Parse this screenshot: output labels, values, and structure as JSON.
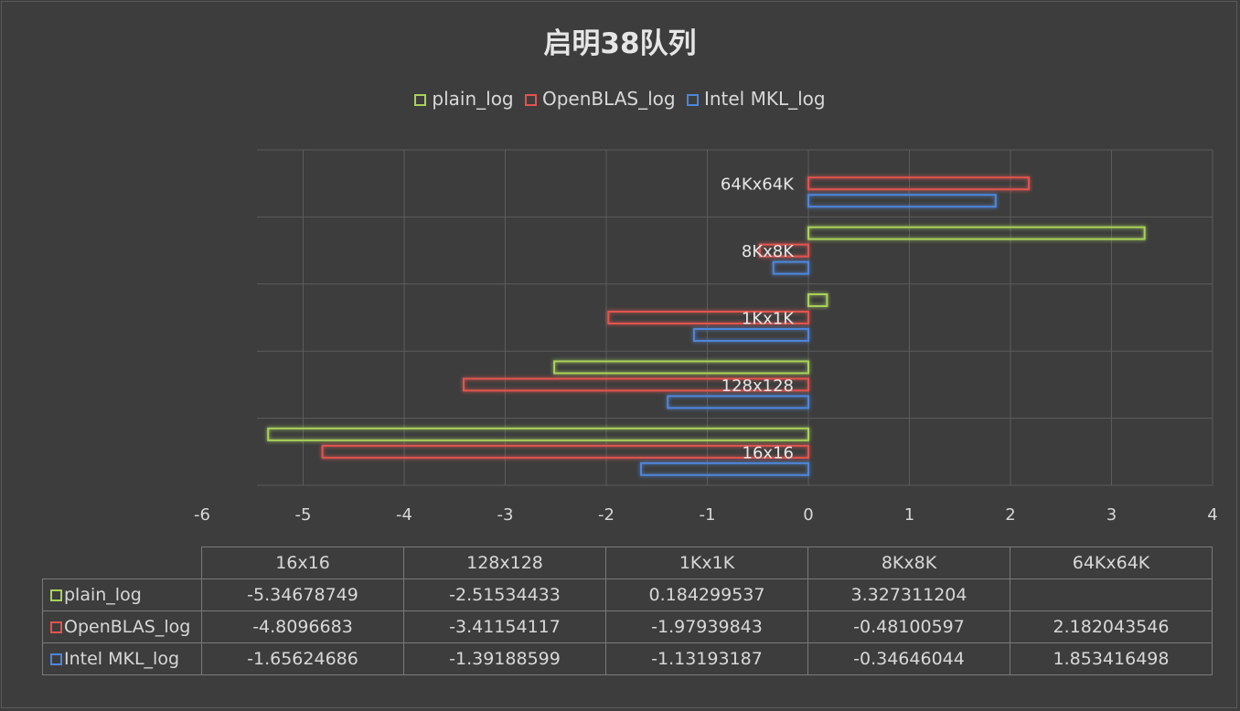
{
  "chart_data": {
    "type": "bar",
    "orientation": "horizontal",
    "title": "启明38队列",
    "categories": [
      "16x16",
      "128x128",
      "1Kx1K",
      "8Kx8K",
      "64Kx64K"
    ],
    "series": [
      {
        "name": "plain_log",
        "color": "#a9d15b",
        "values": [
          -5.34678749,
          -2.51534433,
          0.184299537,
          3.327311204,
          null
        ],
        "labels": [
          "-5.34678749",
          "-2.51534433",
          "0.184299537",
          "3.327311204",
          ""
        ]
      },
      {
        "name": "OpenBLAS_log",
        "color": "#e0544f",
        "values": [
          -4.8096683,
          -3.41154117,
          -1.97939843,
          -0.48100597,
          2.182043546
        ],
        "labels": [
          "-4.8096683",
          "-3.41154117",
          "-1.97939843",
          "-0.48100597",
          "2.182043546"
        ]
      },
      {
        "name": "Intel MKL_log",
        "color": "#4f86d8",
        "values": [
          -1.65624686,
          -1.39188599,
          -1.13193187,
          -0.34646044,
          1.853416498
        ],
        "labels": [
          "-1.65624686",
          "-1.39188599",
          "-1.13193187",
          "-0.34646044",
          "1.853416498"
        ]
      }
    ],
    "xlim": [
      -6,
      4
    ],
    "xticks": [
      -6,
      -5,
      -4,
      -3,
      -2,
      -1,
      0,
      1,
      2,
      3,
      4
    ],
    "grid": true,
    "legend": "top",
    "data_table": true
  }
}
